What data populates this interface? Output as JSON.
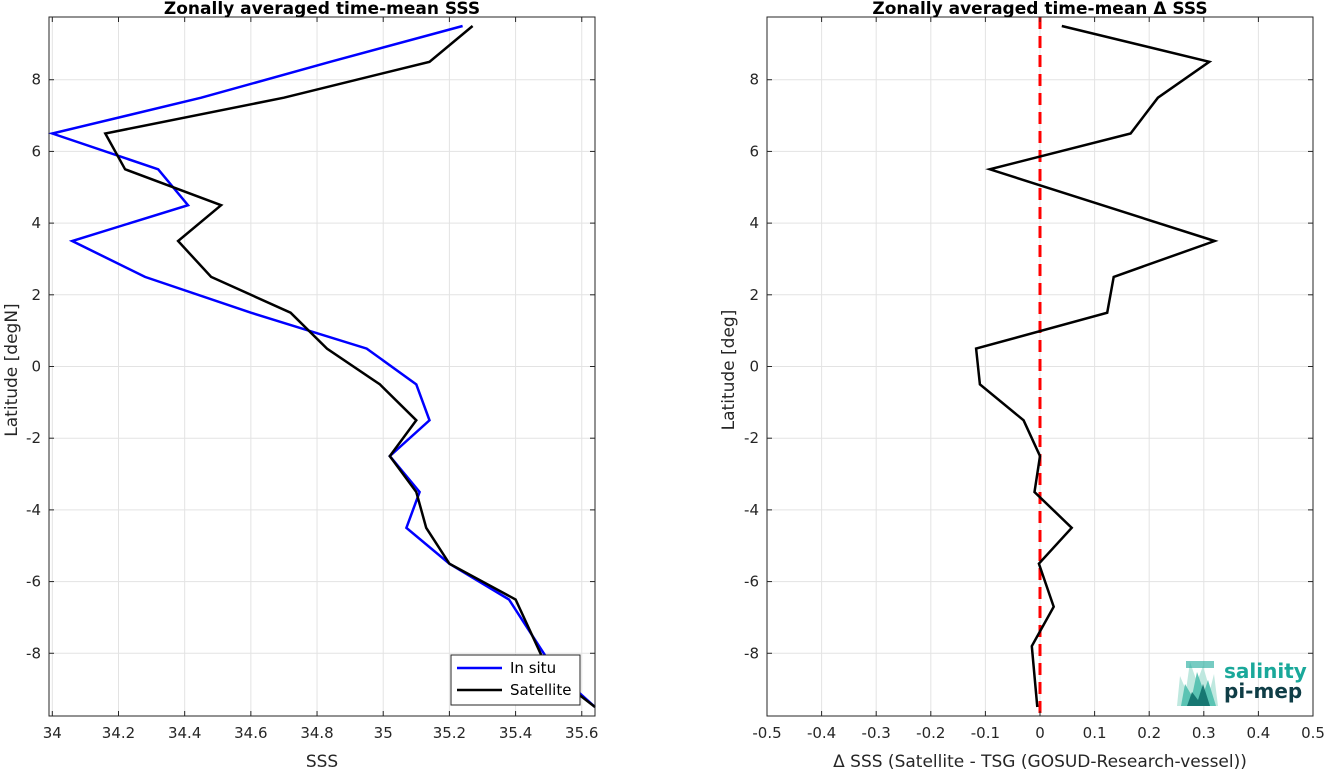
{
  "chart_data": [
    {
      "type": "line",
      "title": "Zonally averaged time-mean SSS",
      "xlabel": "SSS",
      "ylabel": "Latitude [degN]",
      "xlim": [
        33.99,
        35.64
      ],
      "ylim": [
        -9.75,
        9.75
      ],
      "xticks": [
        "34",
        "34.2",
        "34.4",
        "34.6",
        "34.8",
        "35",
        "35.2",
        "35.4",
        "35.6"
      ],
      "xtick_values": [
        34,
        34.2,
        34.4,
        34.6,
        34.8,
        35,
        35.2,
        35.4,
        35.6
      ],
      "yticks": [
        "-8",
        "-6",
        "-4",
        "-2",
        "0",
        "2",
        "4",
        "6",
        "8"
      ],
      "ytick_values": [
        -8,
        -6,
        -4,
        -2,
        0,
        2,
        4,
        6,
        8
      ],
      "grid": true,
      "legend": "bottom-right",
      "series": [
        {
          "name": "In situ",
          "color": "#0000ff",
          "points": [
            [
              35.64,
              -9.5
            ],
            [
              35.52,
              -8.5
            ],
            [
              35.38,
              -6.5
            ],
            [
              35.2,
              -5.5
            ],
            [
              35.07,
              -4.5
            ],
            [
              35.11,
              -3.5
            ],
            [
              35.02,
              -2.5
            ],
            [
              35.14,
              -1.5
            ],
            [
              35.1,
              -0.5
            ],
            [
              34.95,
              0.5
            ],
            [
              34.6,
              1.5
            ],
            [
              34.28,
              2.5
            ],
            [
              34.06,
              3.5
            ],
            [
              34.41,
              4.5
            ],
            [
              34.32,
              5.5
            ],
            [
              34.0,
              6.5
            ],
            [
              34.45,
              7.5
            ],
            [
              34.84,
              8.5
            ],
            [
              35.24,
              9.5
            ]
          ]
        },
        {
          "name": "Satellite",
          "color": "#000000",
          "points": [
            [
              35.64,
              -9.5
            ],
            [
              35.5,
              -8.5
            ],
            [
              35.4,
              -6.5
            ],
            [
              35.2,
              -5.5
            ],
            [
              35.13,
              -4.5
            ],
            [
              35.1,
              -3.5
            ],
            [
              35.02,
              -2.5
            ],
            [
              35.1,
              -1.5
            ],
            [
              34.99,
              -0.5
            ],
            [
              34.83,
              0.5
            ],
            [
              34.72,
              1.5
            ],
            [
              34.48,
              2.5
            ],
            [
              34.38,
              3.5
            ],
            [
              34.51,
              4.5
            ],
            [
              34.22,
              5.5
            ],
            [
              34.16,
              6.5
            ],
            [
              34.7,
              7.5
            ],
            [
              35.14,
              8.5
            ],
            [
              35.27,
              9.5
            ]
          ]
        }
      ]
    },
    {
      "type": "line",
      "title": "Zonally averaged time-mean Δ SSS",
      "xlabel": "Δ SSS (Satellite - TSG (GOSUD-Research-vessel))",
      "ylabel": "Latitude [deg]",
      "xlim": [
        -0.5,
        0.5
      ],
      "ylim": [
        -9.75,
        9.75
      ],
      "xticks": [
        "-0.5",
        "-0.4",
        "-0.3",
        "-0.2",
        "-0.1",
        "0",
        "0.1",
        "0.2",
        "0.3",
        "0.4",
        "0.5"
      ],
      "xtick_values": [
        -0.5,
        -0.4,
        -0.3,
        -0.2,
        -0.1,
        0,
        0.1,
        0.2,
        0.3,
        0.4,
        0.5
      ],
      "yticks": [
        "-8",
        "-6",
        "-4",
        "-2",
        "0",
        "2",
        "4",
        "6",
        "8"
      ],
      "ytick_values": [
        -8,
        -6,
        -4,
        -2,
        0,
        2,
        4,
        6,
        8
      ],
      "grid": true,
      "reference_line": {
        "x": 0,
        "color": "#ff0000",
        "style": "dashed"
      },
      "series": [
        {
          "color": "#000000",
          "points": [
            [
              -0.005,
              -9.5
            ],
            [
              -0.015,
              -7.8
            ],
            [
              0.025,
              -6.7
            ],
            [
              -0.002,
              -5.5
            ],
            [
              0.058,
              -4.5
            ],
            [
              -0.01,
              -3.5
            ],
            [
              0.0,
              -2.5
            ],
            [
              -0.03,
              -1.5
            ],
            [
              -0.11,
              -0.5
            ],
            [
              -0.117,
              0.5
            ],
            [
              0.123,
              1.5
            ],
            [
              0.135,
              2.5
            ],
            [
              0.32,
              3.5
            ],
            [
              -0.092,
              5.5
            ],
            [
              0.166,
              6.5
            ],
            [
              0.216,
              7.5
            ],
            [
              0.31,
              8.5
            ],
            [
              0.04,
              9.5
            ]
          ]
        }
      ]
    }
  ],
  "logo": {
    "line1": "salinity",
    "line2": "pi-mep",
    "line1_color": "#1aa89a",
    "line2_color": "#0f3d46"
  }
}
